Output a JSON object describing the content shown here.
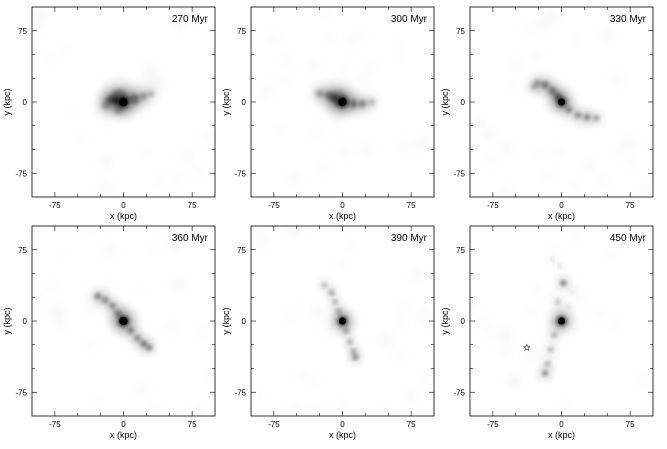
{
  "figure": {
    "xlabel": "x (kpc)",
    "ylabel": "y (kpc)",
    "tick_labels": [
      "-75",
      "0",
      "75"
    ],
    "tick_values": [
      -75,
      0,
      75
    ],
    "axis_range": [
      -100,
      100
    ]
  },
  "panels": [
    {
      "time": "270 Myr",
      "blobs": [
        {
          "x": 0,
          "y": 0,
          "r": 7,
          "i": 1.0
        },
        {
          "x": -8,
          "y": 2,
          "r": 5,
          "i": 0.7
        },
        {
          "x": -15,
          "y": 2,
          "r": 6,
          "i": 0.5
        },
        {
          "x": -5,
          "y": 5,
          "r": 11,
          "i": 0.35
        },
        {
          "x": 12,
          "y": 3,
          "r": 7,
          "i": 0.45
        },
        {
          "x": 22,
          "y": 6,
          "r": 5,
          "i": 0.35
        },
        {
          "x": 30,
          "y": 9,
          "r": 4,
          "i": 0.3
        },
        {
          "x": -20,
          "y": -4,
          "r": 5,
          "i": 0.3
        },
        {
          "x": -5,
          "y": -8,
          "r": 6,
          "i": 0.25
        }
      ]
    },
    {
      "time": "300 Myr",
      "blobs": [
        {
          "x": 0,
          "y": 0,
          "r": 7,
          "i": 1.0
        },
        {
          "x": -8,
          "y": 4,
          "r": 5,
          "i": 0.6
        },
        {
          "x": -15,
          "y": 7,
          "r": 5,
          "i": 0.5
        },
        {
          "x": -25,
          "y": 9,
          "r": 5,
          "i": 0.35
        },
        {
          "x": 12,
          "y": -2,
          "r": 5,
          "i": 0.5
        },
        {
          "x": 22,
          "y": -2,
          "r": 5,
          "i": 0.45
        },
        {
          "x": 32,
          "y": 0,
          "r": 4,
          "i": 0.3
        },
        {
          "x": -5,
          "y": 4,
          "r": 11,
          "i": 0.25
        }
      ]
    },
    {
      "time": "330 Myr",
      "blobs": [
        {
          "x": 0,
          "y": 0,
          "r": 6,
          "i": 1.0
        },
        {
          "x": -4,
          "y": 6,
          "r": 5,
          "i": 0.55
        },
        {
          "x": -10,
          "y": 12,
          "r": 5,
          "i": 0.5
        },
        {
          "x": -18,
          "y": 18,
          "r": 5,
          "i": 0.5
        },
        {
          "x": -26,
          "y": 20,
          "r": 4,
          "i": 0.4
        },
        {
          "x": -30,
          "y": 16,
          "r": 4,
          "i": 0.35
        },
        {
          "x": 8,
          "y": -8,
          "r": 4,
          "i": 0.5
        },
        {
          "x": 18,
          "y": -14,
          "r": 4,
          "i": 0.5
        },
        {
          "x": 28,
          "y": -16,
          "r": 4,
          "i": 0.55
        },
        {
          "x": 38,
          "y": -17,
          "r": 3,
          "i": 0.6
        }
      ]
    },
    {
      "time": "360 Myr",
      "blobs": [
        {
          "x": 0,
          "y": 0,
          "r": 7,
          "i": 1.0
        },
        {
          "x": -6,
          "y": 8,
          "r": 4,
          "i": 0.55
        },
        {
          "x": -12,
          "y": 16,
          "r": 4,
          "i": 0.5
        },
        {
          "x": -20,
          "y": 22,
          "r": 4,
          "i": 0.5
        },
        {
          "x": -28,
          "y": 26,
          "r": 4,
          "i": 0.55
        },
        {
          "x": 8,
          "y": -10,
          "r": 4,
          "i": 0.5
        },
        {
          "x": 15,
          "y": -18,
          "r": 4,
          "i": 0.5
        },
        {
          "x": 22,
          "y": -24,
          "r": 4,
          "i": 0.6
        },
        {
          "x": 28,
          "y": -28,
          "r": 3,
          "i": 0.75
        }
      ]
    },
    {
      "time": "390 Myr",
      "blobs": [
        {
          "x": 0,
          "y": 0,
          "r": 6,
          "i": 1.0
        },
        {
          "x": -4,
          "y": 10,
          "r": 3,
          "i": 0.5
        },
        {
          "x": -8,
          "y": 20,
          "r": 3,
          "i": 0.45
        },
        {
          "x": -12,
          "y": 30,
          "r": 3,
          "i": 0.55
        },
        {
          "x": -20,
          "y": 38,
          "r": 3,
          "i": 0.4
        },
        {
          "x": 4,
          "y": -10,
          "r": 3,
          "i": 0.5
        },
        {
          "x": 8,
          "y": -22,
          "r": 3,
          "i": 0.5
        },
        {
          "x": 12,
          "y": -32,
          "r": 3,
          "i": 0.5
        },
        {
          "x": 14,
          "y": -38,
          "r": 3,
          "i": 0.75
        }
      ]
    },
    {
      "time": "450 Myr",
      "blobs": [
        {
          "x": 0,
          "y": 0,
          "r": 6,
          "i": 1.0
        },
        {
          "x": 2,
          "y": 40,
          "r": 3,
          "i": 0.85
        },
        {
          "x": -4,
          "y": 20,
          "r": 3,
          "i": 0.35
        },
        {
          "x": -2,
          "y": 58,
          "r": 2,
          "i": 0.35
        },
        {
          "x": -10,
          "y": 65,
          "r": 2,
          "i": 0.3
        },
        {
          "x": -8,
          "y": -15,
          "r": 3,
          "i": 0.45
        },
        {
          "x": -12,
          "y": -30,
          "r": 3,
          "i": 0.45
        },
        {
          "x": -15,
          "y": -45,
          "r": 3,
          "i": 0.5
        },
        {
          "x": -18,
          "y": -55,
          "r": 3,
          "i": 0.7
        },
        {
          "x": 8,
          "y": 15,
          "r": 2,
          "i": 0.25
        },
        {
          "x": 12,
          "y": 30,
          "r": 2,
          "i": 0.2
        }
      ],
      "star_marker": {
        "x": -38,
        "y": -28
      }
    }
  ]
}
